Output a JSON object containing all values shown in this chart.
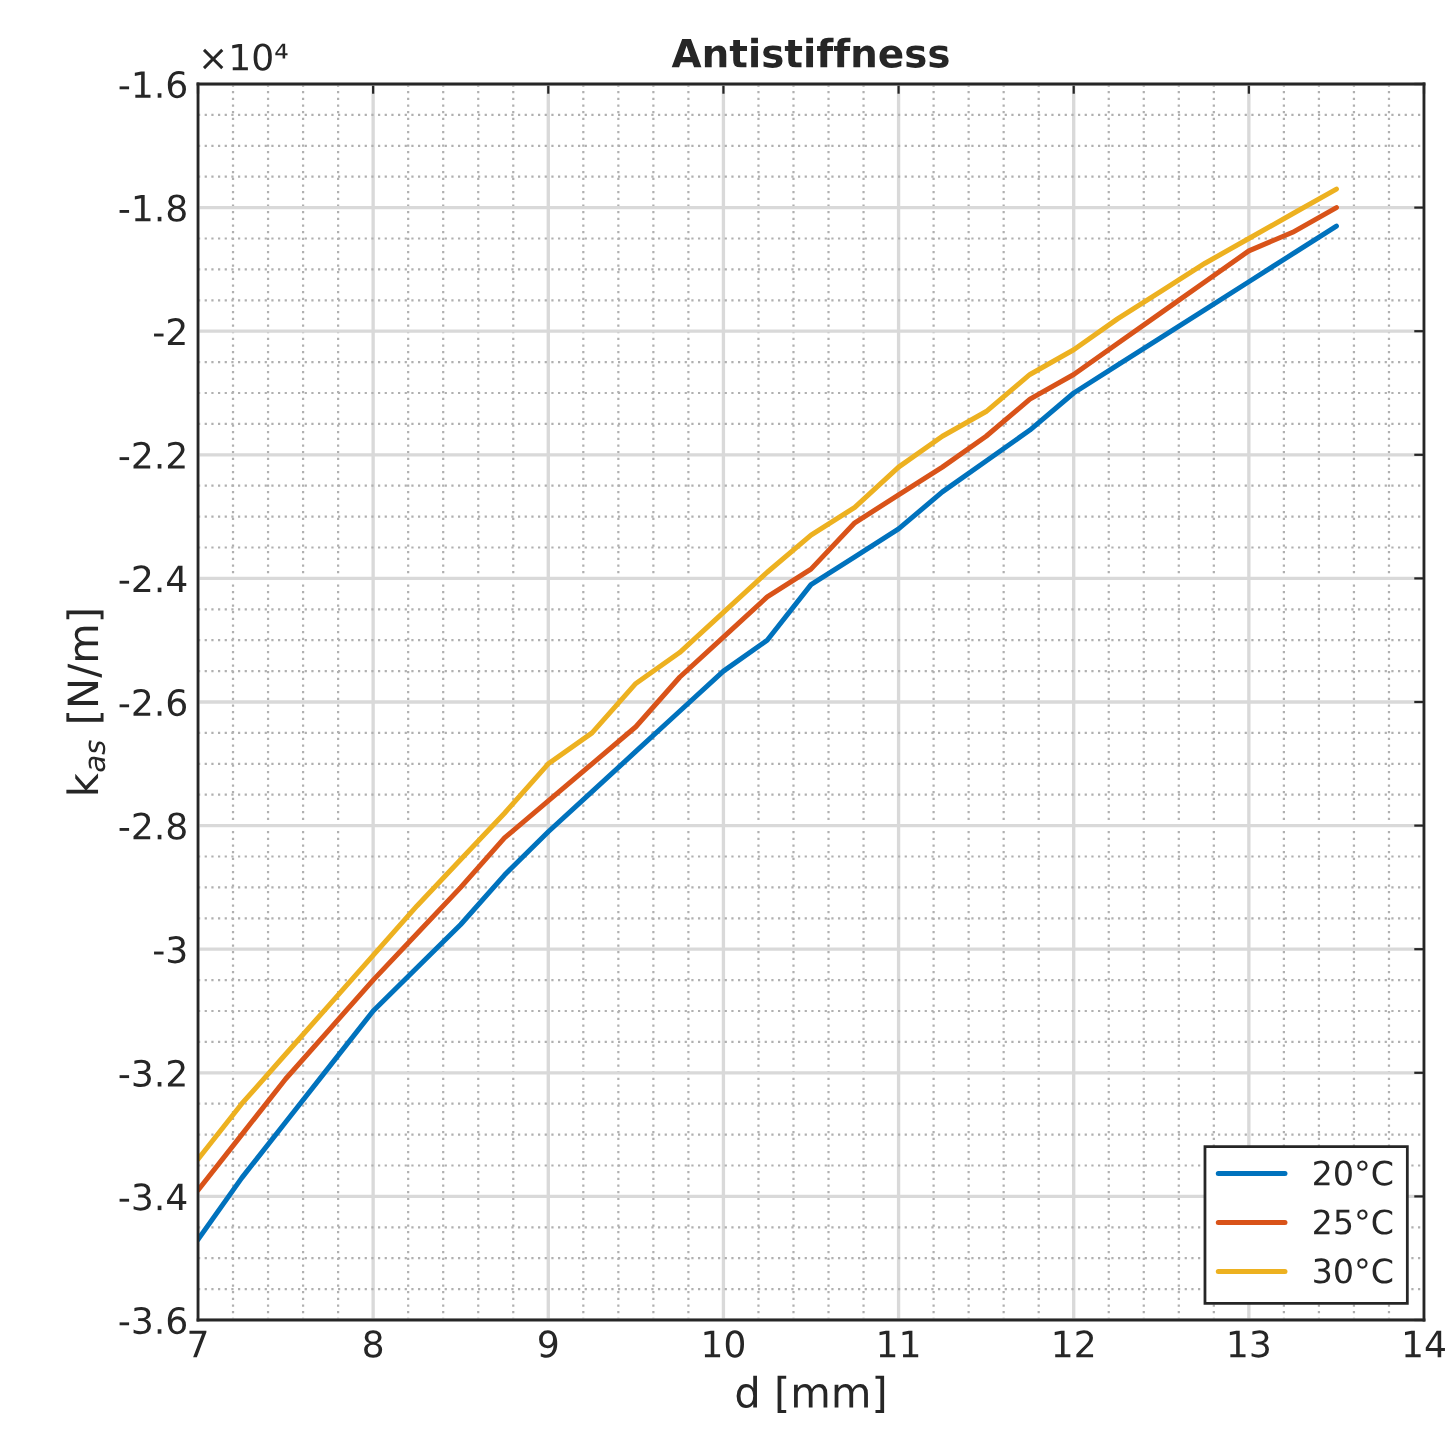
{
  "chart_data": {
    "type": "line",
    "title": "Antistiffness",
    "xlabel": "d [mm]",
    "ylabel": "k$_{as}$ [N/m]",
    "annotations": [
      "×10⁴"
    ],
    "x": [
      7,
      7.25,
      7.5,
      7.75,
      8,
      8.25,
      8.5,
      8.75,
      9,
      9.25,
      9.5,
      9.75,
      10,
      10.25,
      10.5,
      10.75,
      11,
      11.25,
      11.5,
      11.75,
      12,
      12.25,
      12.5,
      12.75,
      13,
      13.25,
      13.5
    ],
    "series": [
      {
        "name": "20°C",
        "color": "#0072bd",
        "values": [
          -3.47,
          -3.37,
          -3.28,
          -3.19,
          -3.1,
          -3.03,
          -2.96,
          -2.88,
          -2.81,
          -2.745,
          -2.68,
          -2.615,
          -2.55,
          -2.5,
          -2.41,
          -2.365,
          -2.32,
          -2.26,
          -2.21,
          -2.16,
          -2.1,
          -2.055,
          -2.01,
          -1.965,
          -1.92,
          -1.875,
          -1.83
        ]
      },
      {
        "name": "25°C",
        "color": "#d95319",
        "values": [
          -3.39,
          -3.3,
          -3.21,
          -3.13,
          -3.05,
          -2.975,
          -2.9,
          -2.82,
          -2.76,
          -2.7,
          -2.64,
          -2.56,
          -2.495,
          -2.43,
          -2.385,
          -2.31,
          -2.265,
          -2.22,
          -2.17,
          -2.11,
          -2.07,
          -2.02,
          -1.97,
          -1.92,
          -1.87,
          -1.84,
          -1.8
        ]
      },
      {
        "name": "30°C",
        "color": "#edb120",
        "values": [
          -3.34,
          -3.25,
          -3.17,
          -3.09,
          -3.01,
          -2.93,
          -2.855,
          -2.78,
          -2.7,
          -2.65,
          -2.57,
          -2.52,
          -2.455,
          -2.39,
          -2.33,
          -2.285,
          -2.22,
          -2.17,
          -2.13,
          -2.07,
          -2.03,
          -1.98,
          -1.935,
          -1.89,
          -1.85,
          -1.81,
          -1.77
        ]
      }
    ],
    "xlim": [
      7,
      14
    ],
    "xticks": [
      7,
      8,
      9,
      10,
      11,
      12,
      13,
      14
    ],
    "ylim": [
      -3.6,
      -1.6
    ],
    "yticks": [
      -3.6,
      -3.4,
      -3.2,
      -3,
      -2.8,
      -2.6,
      -2.4,
      -2.2,
      -2,
      -1.8,
      -1.6
    ],
    "grid": true,
    "legend": "bottom right",
    "marker": "none",
    "line_style": "solid"
  }
}
